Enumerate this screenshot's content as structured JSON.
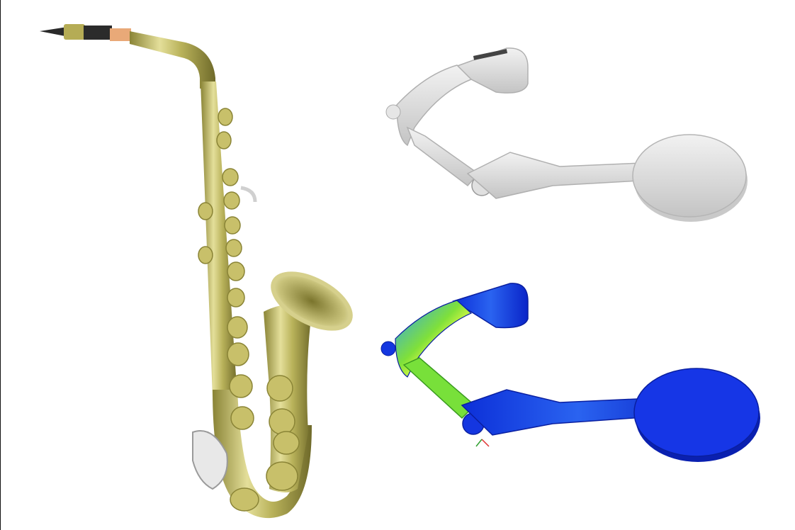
{
  "scene": {
    "background": "#ffffff",
    "objects": [
      {
        "name": "saxophone",
        "material_color": "#b9b25a"
      },
      {
        "name": "lever-arm-plain",
        "material_color": "#dcdcdc"
      },
      {
        "name": "lever-arm-stress-plot",
        "colors": [
          "#1f3fe0",
          "#7fe03a",
          "#f0e040"
        ]
      }
    ]
  }
}
